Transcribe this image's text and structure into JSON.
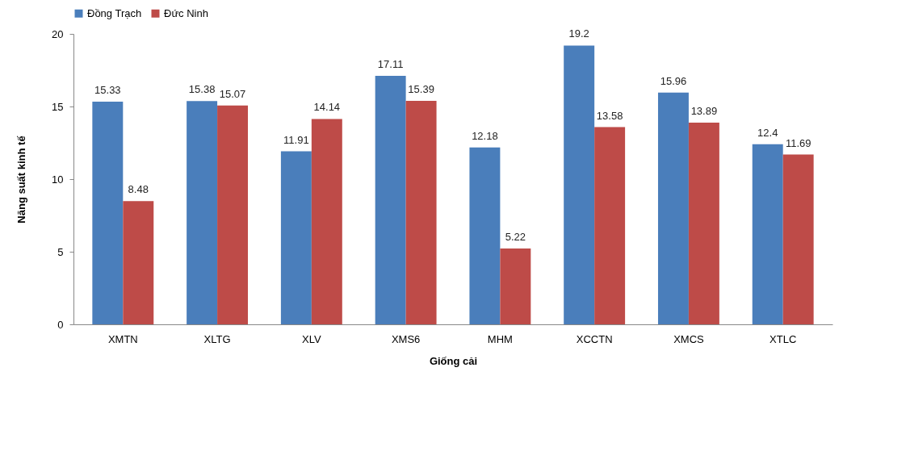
{
  "chart_data": {
    "type": "bar",
    "xlabel": "Giống cải",
    "ylabel": "Năng suất kinh tế",
    "categories": [
      "XMTN",
      "XLTG",
      "XLV",
      "XMS6",
      "MHM",
      "XCCTN",
      "XMCS",
      "XTLC"
    ],
    "series": [
      {
        "name": "Đồng Trạch",
        "color": "#4a7ebb",
        "values": [
          15.33,
          15.38,
          11.91,
          17.11,
          12.18,
          19.2,
          15.96,
          12.4
        ]
      },
      {
        "name": "Đức Ninh",
        "color": "#be4b48",
        "values": [
          8.48,
          15.07,
          14.14,
          15.39,
          5.22,
          13.58,
          13.89,
          11.69
        ]
      }
    ],
    "ylim": [
      0,
      20
    ],
    "yticks": [
      0,
      5,
      10,
      15,
      20
    ],
    "data_labels": true,
    "legend": "top",
    "grid": false
  }
}
